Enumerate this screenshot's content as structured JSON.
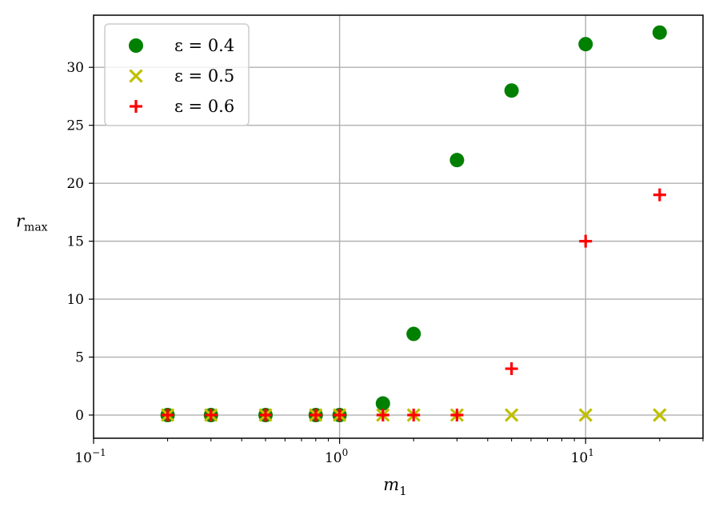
{
  "chart_data": {
    "type": "scatter",
    "x_scale": "log",
    "xlim": [
      0.1,
      30
    ],
    "ylim": [
      -2,
      34.5
    ],
    "xlabel": {
      "base": "m",
      "sub": "1"
    },
    "ylabel": {
      "base": "r",
      "sub": "max"
    },
    "grid": true,
    "legend_position": "top-left",
    "x_major_ticks": [
      {
        "value": 0.1,
        "base": "10",
        "exp": "−1"
      },
      {
        "value": 1,
        "base": "10",
        "exp": "0"
      },
      {
        "value": 10,
        "base": "10",
        "exp": "1"
      }
    ],
    "y_ticks": [
      0,
      5,
      10,
      15,
      20,
      25,
      30
    ],
    "series": [
      {
        "name": "ε = 0.4",
        "marker": "circle",
        "color": "#008000",
        "points": [
          [
            0.2,
            0
          ],
          [
            0.3,
            0
          ],
          [
            0.5,
            0
          ],
          [
            0.8,
            0
          ],
          [
            1,
            0
          ],
          [
            1.5,
            1
          ],
          [
            2,
            7
          ],
          [
            3,
            22
          ],
          [
            5,
            28
          ],
          [
            10,
            32
          ],
          [
            20,
            33
          ]
        ]
      },
      {
        "name": "ε = 0.5",
        "marker": "x",
        "color": "#bfbf00",
        "points": [
          [
            0.2,
            0
          ],
          [
            0.3,
            0
          ],
          [
            0.5,
            0
          ],
          [
            0.8,
            0
          ],
          [
            1,
            0
          ],
          [
            1.5,
            0
          ],
          [
            2,
            0
          ],
          [
            3,
            0
          ],
          [
            5,
            0
          ],
          [
            10,
            0
          ],
          [
            20,
            0
          ]
        ]
      },
      {
        "name": "ε = 0.6",
        "marker": "plus",
        "color": "#ff0000",
        "points": [
          [
            0.2,
            0
          ],
          [
            0.3,
            0
          ],
          [
            0.5,
            0
          ],
          [
            0.8,
            0
          ],
          [
            1,
            0
          ],
          [
            1.5,
            0
          ],
          [
            2,
            0
          ],
          [
            3,
            0
          ],
          [
            5,
            4
          ],
          [
            10,
            15
          ],
          [
            20,
            19
          ]
        ]
      }
    ]
  }
}
